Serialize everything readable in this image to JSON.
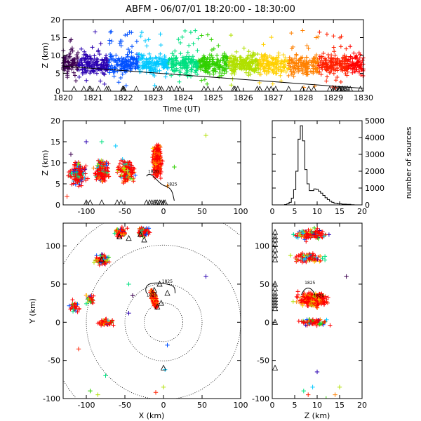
{
  "title": "ABFM - 06/07/01 18:20:00 - 18:30:00",
  "colors": {
    "time_ramp": [
      "#3c0050",
      "#2a00b0",
      "#0050ff",
      "#00c8ff",
      "#00e080",
      "#30d000",
      "#b0e000",
      "#ffd000",
      "#ff8000",
      "#ff2000",
      "#ff0000"
    ],
    "main_cluster": "#ff0000",
    "axes": "#000000",
    "triangles": "#000000"
  },
  "chart_data": [
    {
      "id": "time_height",
      "type": "scatter",
      "xlabel": "Time (UT)",
      "ylabel": "Z (km)",
      "xlim": [
        1820,
        1830
      ],
      "ylim": [
        0,
        20
      ],
      "xticks": [
        "1820",
        "1821",
        "1822",
        "1823",
        "1824",
        "1825",
        "1826",
        "1827",
        "1828",
        "1829",
        "1830"
      ],
      "yticks": [
        "0",
        "5",
        "10",
        "15",
        "20"
      ],
      "trend_line": [
        [
          1820,
          7.0
        ],
        [
          1830,
          0.8
        ]
      ],
      "station_markers": "triangles along time axis",
      "marker": "plus",
      "color_by": "time"
    },
    {
      "id": "x_height",
      "type": "scatter",
      "xlabel": "",
      "ylabel": "Z (km)",
      "xlim": [
        -130,
        100
      ],
      "ylim": [
        0,
        20
      ],
      "xticks": [
        "-100",
        "-50",
        "0",
        "50",
        "100"
      ],
      "yticks": [
        "0",
        "5",
        "10",
        "15",
        "20"
      ],
      "track_labels": [
        "1820",
        "1825"
      ],
      "marker": "plus",
      "color_by": "time"
    },
    {
      "id": "height_histogram",
      "type": "line",
      "xlabel": "",
      "ylabel": "number of sources",
      "xlim": [
        0,
        20
      ],
      "ylim": [
        0,
        5000
      ],
      "xticks": [
        "0",
        "5",
        "10",
        "15",
        "20"
      ],
      "yticks": [
        "0",
        "1000",
        "2000",
        "3000",
        "4000",
        "5000"
      ],
      "x": [
        3.0,
        3.5,
        4.0,
        4.5,
        5.0,
        5.5,
        6.0,
        6.5,
        7.0,
        7.5,
        8.0,
        8.5,
        9.0,
        9.5,
        10.0,
        10.5,
        11.0,
        11.5,
        12.0,
        12.5,
        13.0,
        13.5,
        14.0,
        15.0,
        16.0,
        17.0,
        18.0
      ],
      "values": [
        20,
        60,
        150,
        400,
        900,
        2000,
        3900,
        4700,
        3800,
        2100,
        1250,
        850,
        850,
        950,
        920,
        820,
        700,
        560,
        420,
        320,
        220,
        150,
        100,
        60,
        40,
        30,
        10
      ]
    },
    {
      "id": "plan_view",
      "type": "scatter",
      "xlabel": "X (km)",
      "ylabel": "Y (km)",
      "xlim": [
        -130,
        100
      ],
      "ylim": [
        -100,
        130
      ],
      "xticks": [
        "-100",
        "-50",
        "0",
        "50",
        "100"
      ],
      "yticks": [
        "-100",
        "-50",
        "0",
        "50",
        "100"
      ],
      "range_rings_km": [
        25,
        50,
        100,
        150
      ],
      "track_labels": [
        "1825",
        "1820"
      ],
      "marker": "plus",
      "color_by": "time"
    },
    {
      "id": "height_y",
      "type": "scatter",
      "xlabel": "Z (km)",
      "ylabel": "",
      "xlim": [
        0,
        20
      ],
      "ylim": [
        -100,
        130
      ],
      "xticks": [
        "0",
        "5",
        "10",
        "15",
        "20"
      ],
      "yticks": [
        "-100",
        "-50",
        "0",
        "50",
        "100"
      ],
      "track_labels": [
        "1825",
        "1820"
      ],
      "marker": "plus",
      "color_by": "time"
    }
  ]
}
